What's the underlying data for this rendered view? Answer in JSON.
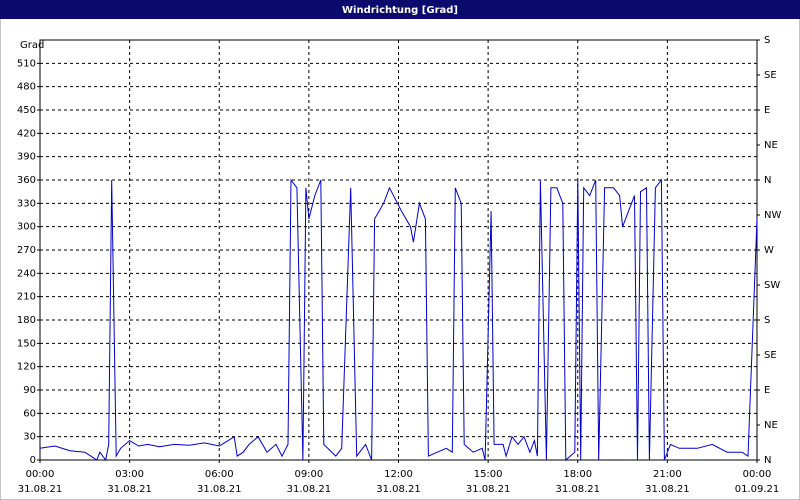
{
  "chart_data": {
    "type": "line",
    "title": "Windrichtung [Grad]",
    "y_label": "Grad",
    "x": [
      0,
      0.5,
      1,
      1.5,
      1.7,
      1.9,
      2.0,
      2.2,
      2.3,
      2.4,
      2.55,
      2.7,
      3.0,
      3.3,
      3.6,
      4.0,
      4.5,
      5.0,
      5.5,
      6.0,
      6.3,
      6.5,
      6.6,
      6.8,
      7.0,
      7.3,
      7.6,
      7.9,
      8.1,
      8.3,
      8.4,
      8.6,
      8.8,
      8.9,
      9.0,
      9.2,
      9.4,
      9.5,
      9.9,
      10.1,
      10.4,
      10.6,
      10.9,
      11.1,
      11.2,
      11.5,
      11.7,
      12.1,
      12.4,
      12.5,
      12.7,
      12.9,
      13.0,
      13.3,
      13.6,
      13.8,
      13.9,
      14.1,
      14.2,
      14.5,
      14.8,
      14.9,
      15.1,
      15.2,
      15.5,
      15.6,
      15.8,
      16.0,
      16.2,
      16.4,
      16.55,
      16.65,
      16.75,
      16.95,
      17.1,
      17.3,
      17.5,
      17.6,
      17.9,
      18.0,
      18.1,
      18.2,
      18.4,
      18.6,
      18.7,
      18.9,
      19.2,
      19.4,
      19.5,
      19.9,
      20.0,
      20.1,
      20.3,
      20.4,
      20.6,
      20.8,
      20.9,
      21.1,
      21.4,
      22.0,
      22.5,
      23.0,
      23.5,
      23.7,
      24.0
    ],
    "series": [
      {
        "name": "Windrichtung",
        "color": "#0000c8",
        "values": [
          15,
          18,
          12,
          10,
          5,
          0,
          10,
          0,
          20,
          360,
          5,
          15,
          25,
          18,
          20,
          17,
          20,
          19,
          22,
          18,
          25,
          30,
          5,
          10,
          20,
          30,
          10,
          20,
          5,
          20,
          360,
          350,
          0,
          350,
          310,
          340,
          360,
          20,
          5,
          15,
          350,
          5,
          20,
          0,
          310,
          330,
          350,
          320,
          300,
          280,
          330,
          310,
          5,
          10,
          15,
          10,
          350,
          330,
          20,
          10,
          15,
          0,
          320,
          20,
          20,
          5,
          30,
          20,
          30,
          10,
          25,
          5,
          360,
          0,
          350,
          350,
          330,
          0,
          10,
          360,
          0,
          350,
          340,
          360,
          0,
          350,
          350,
          340,
          300,
          340,
          0,
          345,
          350,
          0,
          350,
          360,
          0,
          20,
          15,
          15,
          20,
          10,
          10,
          5,
          310
        ]
      }
    ],
    "xlim": [
      0,
      24
    ],
    "xticks": [
      {
        "value": 0,
        "label": "00:00"
      },
      {
        "value": 3,
        "label": "03:00"
      },
      {
        "value": 6,
        "label": "06:00"
      },
      {
        "value": 9,
        "label": "09:00"
      },
      {
        "value": 12,
        "label": "12:00"
      },
      {
        "value": 15,
        "label": "15:00"
      },
      {
        "value": 18,
        "label": "18:00"
      },
      {
        "value": 21,
        "label": "21:00"
      },
      {
        "value": 24,
        "label": "00:00"
      }
    ],
    "xtick_dates": [
      "31.08.21",
      "31.08.21",
      "31.08.21",
      "31.08.21",
      "31.08.21",
      "31.08.21",
      "31.08.21",
      "31.08.21",
      "01.09.21"
    ],
    "ylim": [
      0,
      540
    ],
    "yticks": [
      0,
      30,
      60,
      90,
      120,
      150,
      180,
      210,
      240,
      270,
      300,
      330,
      360,
      390,
      420,
      450,
      480,
      510
    ],
    "y2lim": [
      0,
      540
    ],
    "y2ticks": [
      {
        "value": 0,
        "label": "N"
      },
      {
        "value": 45,
        "label": "NE"
      },
      {
        "value": 90,
        "label": "E"
      },
      {
        "value": 135,
        "label": "SE"
      },
      {
        "value": 180,
        "label": "S"
      },
      {
        "value": 225,
        "label": "SW"
      },
      {
        "value": 270,
        "label": "W"
      },
      {
        "value": 315,
        "label": "NW"
      },
      {
        "value": 360,
        "label": "N"
      },
      {
        "value": 405,
        "label": "NE"
      },
      {
        "value": 450,
        "label": "E"
      },
      {
        "value": 495,
        "label": "SE"
      },
      {
        "value": 540,
        "label": "S"
      }
    ],
    "grid": true
  }
}
